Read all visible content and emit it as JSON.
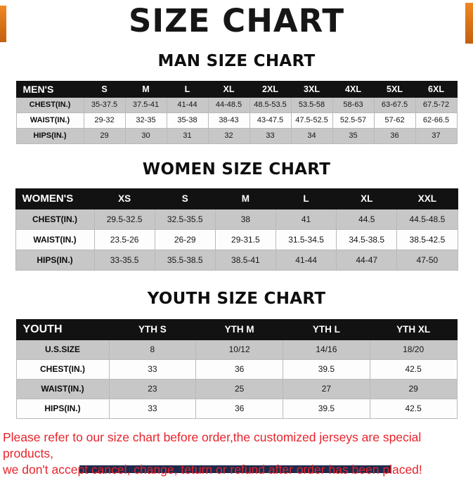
{
  "title": "SIZE CHART",
  "colors": {
    "accent_orange": "#e0751d",
    "table_header_black": "#121212",
    "row_gray": "#c7c7c7",
    "row_white": "#fdfdfd",
    "footer_red": "#e8232b",
    "bottom_bar_navy": "#1c2a4d"
  },
  "tables": [
    {
      "section_title": "MAN SIZE CHART",
      "header": [
        "MEN'S",
        "S",
        "M",
        "L",
        "XL",
        "2XL",
        "3XL",
        "4XL",
        "5XL",
        "6XL"
      ],
      "rows": [
        [
          "CHEST(IN.)",
          "35-37.5",
          "37.5-41",
          "41-44",
          "44-48.5",
          "48.5-53.5",
          "53.5-58",
          "58-63",
          "63-67.5",
          "67.5-72"
        ],
        [
          "WAIST(IN.)",
          "29-32",
          "32-35",
          "35-38",
          "38-43",
          "43-47.5",
          "47.5-52.5",
          "52.5-57",
          "57-62",
          "62-66.5"
        ],
        [
          "HIPS(IN.)",
          "29",
          "30",
          "31",
          "32",
          "33",
          "34",
          "35",
          "36",
          "37"
        ]
      ]
    },
    {
      "section_title": "WOMEN SIZE CHART",
      "header": [
        "WOMEN'S",
        "XS",
        "S",
        "M",
        "L",
        "XL",
        "XXL"
      ],
      "rows": [
        [
          "CHEST(IN.)",
          "29.5-32.5",
          "32.5-35.5",
          "38",
          "41",
          "44.5",
          "44.5-48.5"
        ],
        [
          "WAIST(IN.)",
          "23.5-26",
          "26-29",
          "29-31.5",
          "31.5-34.5",
          "34.5-38.5",
          "38.5-42.5"
        ],
        [
          "HIPS(IN.)",
          "33-35.5",
          "35.5-38.5",
          "38.5-41",
          "41-44",
          "44-47",
          "47-50"
        ]
      ]
    },
    {
      "section_title": "YOUTH SIZE CHART",
      "header": [
        "YOUTH",
        "YTH S",
        "YTH M",
        "YTH L",
        "YTH XL"
      ],
      "rows": [
        [
          "U.S.SIZE",
          "8",
          "10/12",
          "14/16",
          "18/20"
        ],
        [
          "CHEST(IN.)",
          "33",
          "36",
          "39.5",
          "42.5"
        ],
        [
          "WAIST(IN.)",
          "23",
          "25",
          "27",
          "29"
        ],
        [
          "HIPS(IN.)",
          "33",
          "36",
          "39.5",
          "42.5"
        ]
      ]
    }
  ],
  "footer": {
    "line1": "Please refer to our size chart before order,the customized jerseys are special products,",
    "line2": "we don't accept cancel, change, teturn or refund after order has been placed!"
  }
}
